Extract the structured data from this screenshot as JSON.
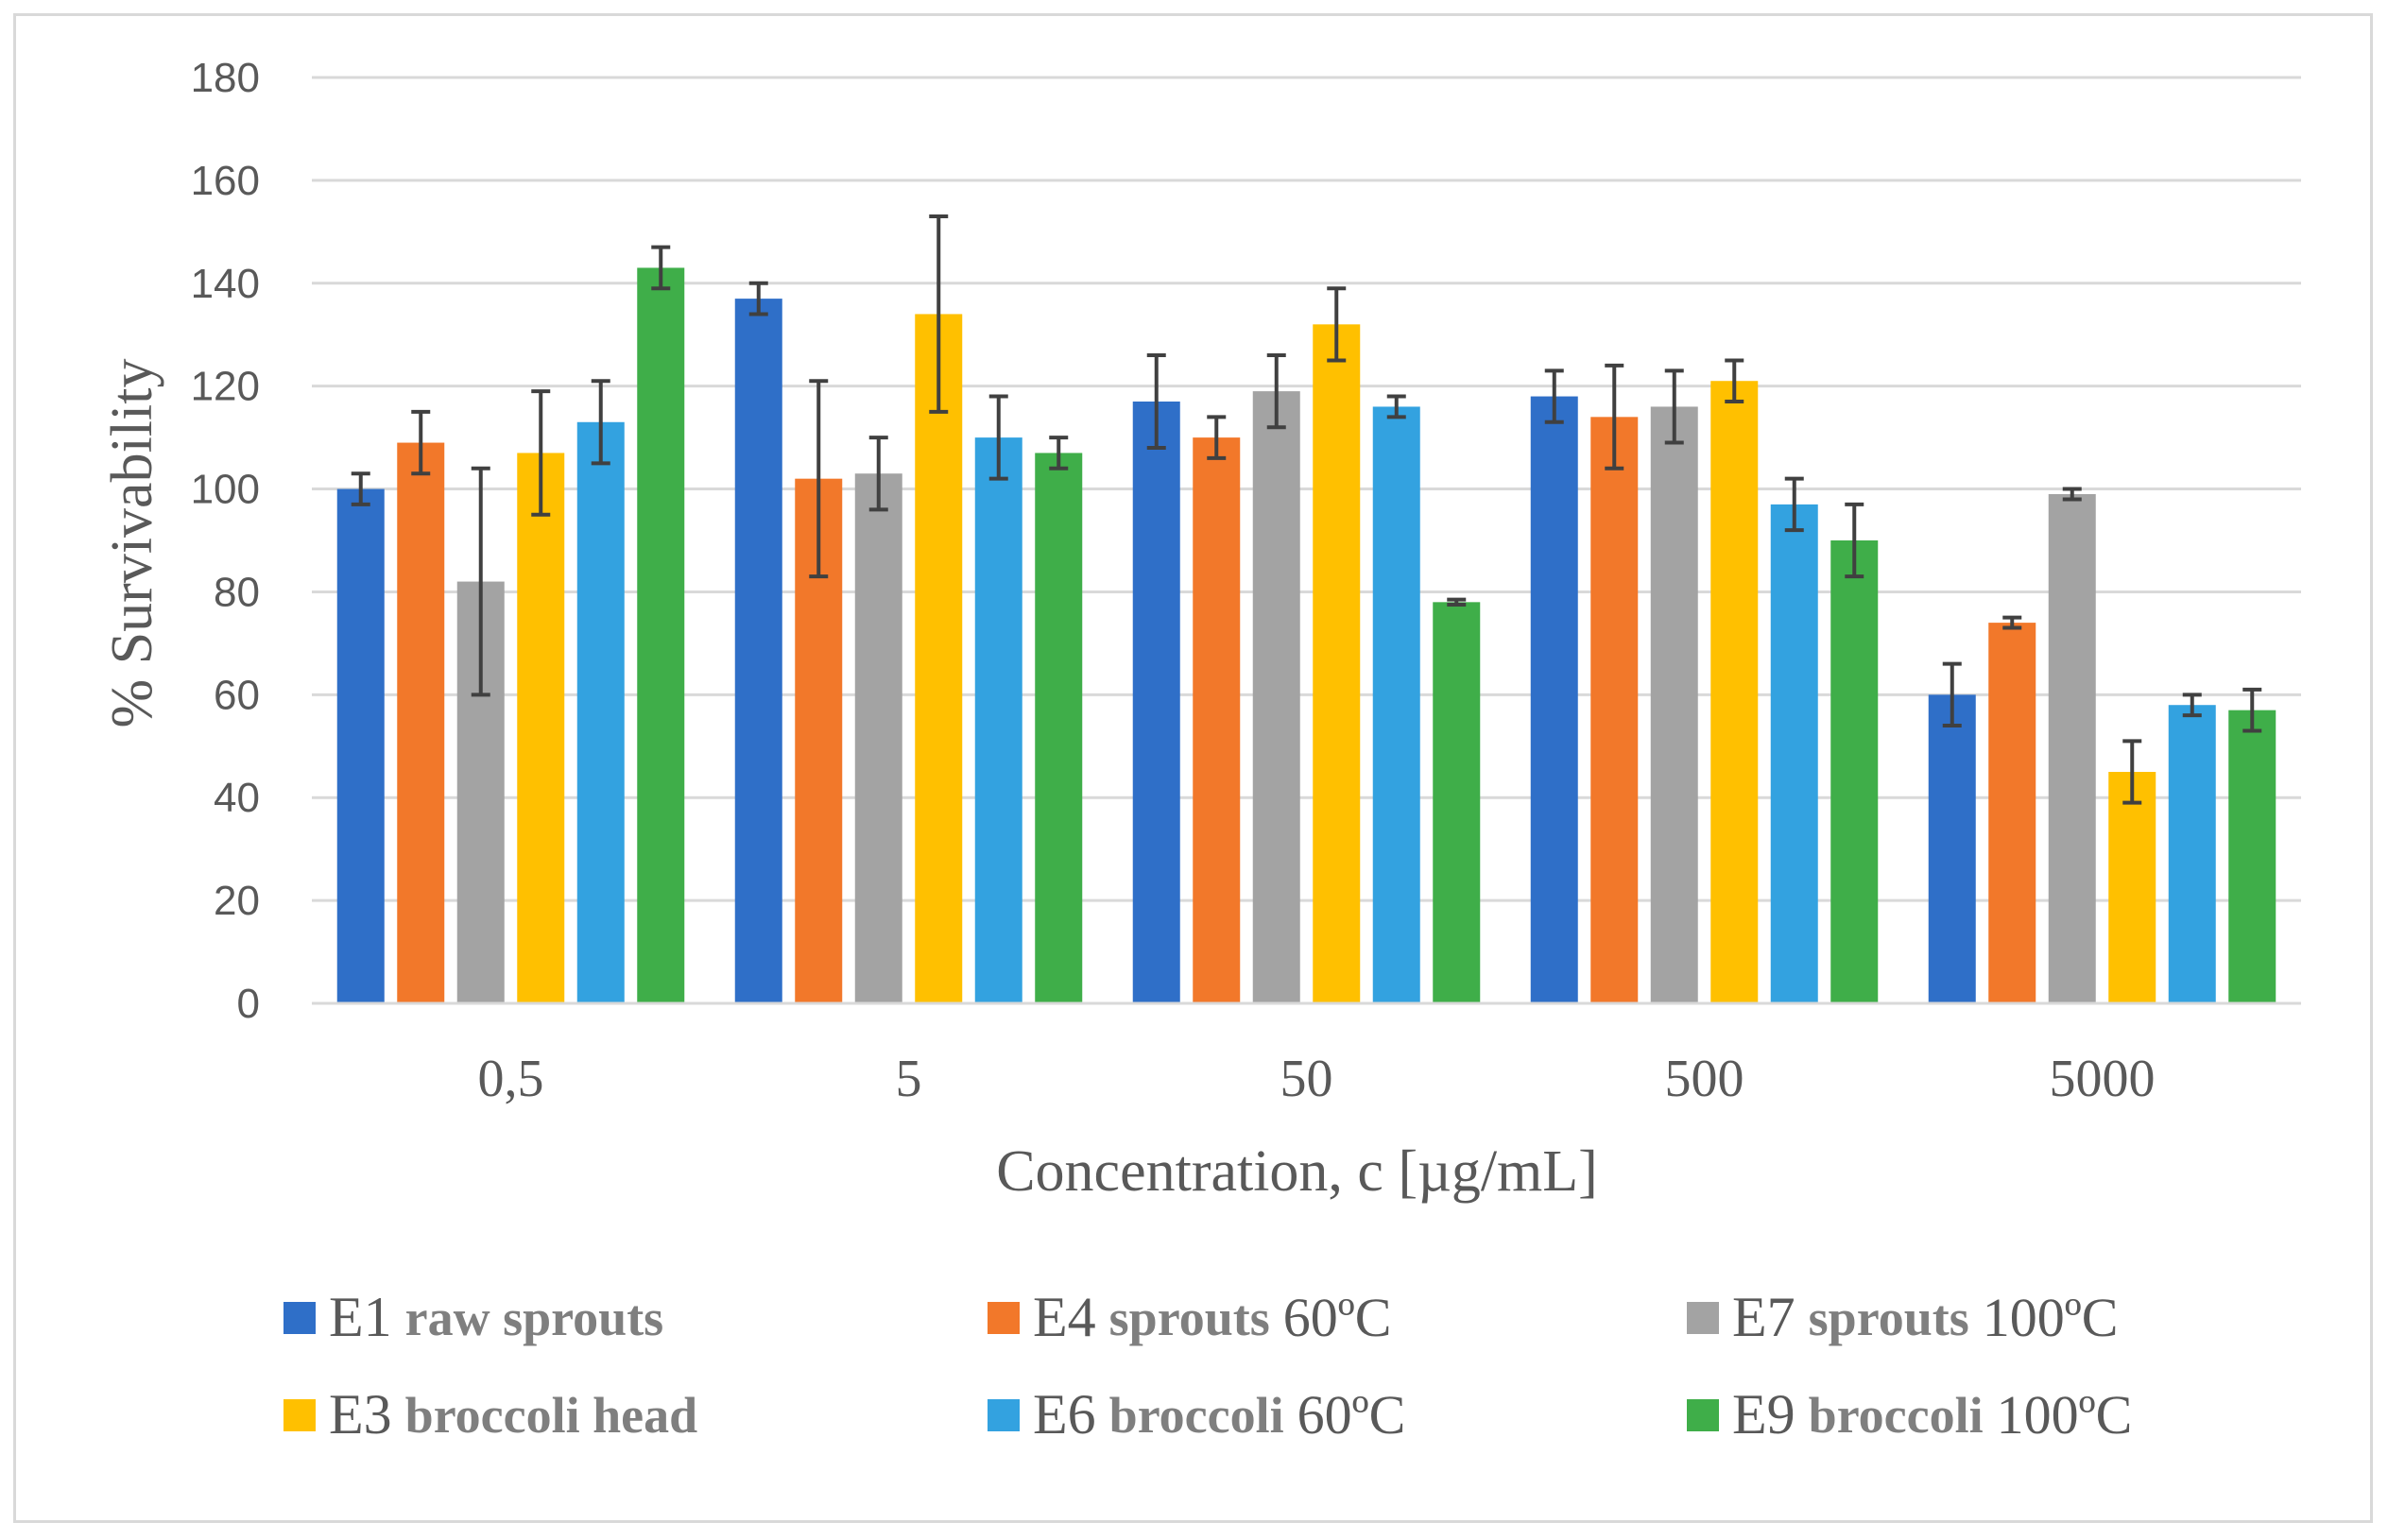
{
  "chart_data": {
    "type": "bar",
    "title": "",
    "xlabel": "Concentration, c [µg/mL]",
    "ylabel": "% Survivability",
    "ylim": [
      0,
      180
    ],
    "yticks": [
      0,
      20,
      40,
      60,
      80,
      100,
      120,
      140,
      160,
      180
    ],
    "grid": true,
    "categories": [
      "0,5",
      "5",
      "50",
      "500",
      "5000"
    ],
    "legend_position": "bottom",
    "series": [
      {
        "code": "E1",
        "desc": "raw sprouts",
        "temp": "",
        "color": "#2f6fc8",
        "values": [
          100,
          137,
          117,
          118,
          60
        ],
        "errors": [
          3,
          3,
          9,
          5,
          6
        ]
      },
      {
        "code": "E4",
        "desc": "sprouts",
        "temp": "60ºC",
        "color": "#f2782a",
        "values": [
          109,
          102,
          110,
          114,
          74
        ],
        "errors": [
          6,
          19,
          4,
          10,
          1
        ]
      },
      {
        "code": "E7",
        "desc": "sprouts",
        "temp": "100ºC",
        "color": "#a3a3a3",
        "values": [
          82,
          103,
          119,
          116,
          99
        ],
        "errors": [
          22,
          7,
          7,
          7,
          1
        ]
      },
      {
        "code": "E3",
        "desc": "broccoli head",
        "temp": "",
        "color": "#ffc000",
        "values": [
          107,
          134,
          132,
          121,
          45
        ],
        "errors": [
          12,
          19,
          7,
          4,
          6
        ]
      },
      {
        "code": "E6",
        "desc": "broccoli",
        "temp": "60ºC",
        "color": "#33a2e0",
        "values": [
          113,
          110,
          116,
          97,
          58
        ],
        "errors": [
          8,
          8,
          2,
          5,
          2
        ]
      },
      {
        "code": "E9",
        "desc": "broccoli",
        "temp": "100ºC",
        "color": "#3fae49",
        "values": [
          143,
          107,
          78,
          90,
          57
        ],
        "errors": [
          4,
          3,
          0.5,
          7,
          4
        ]
      }
    ]
  }
}
